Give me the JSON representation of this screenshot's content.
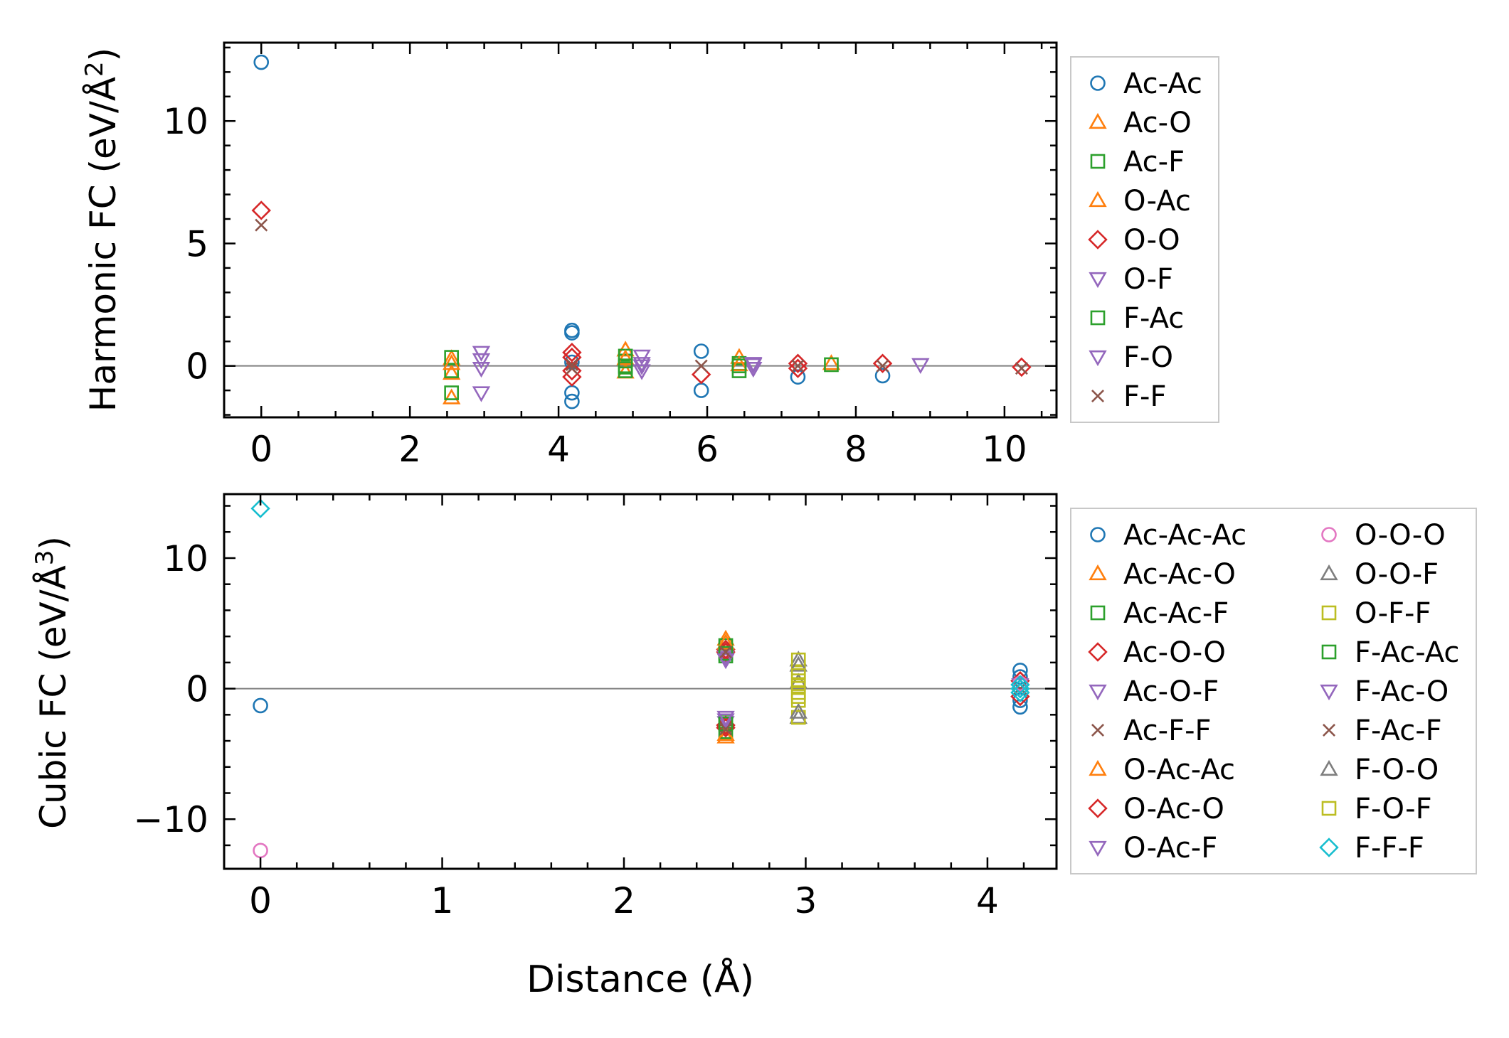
{
  "chart_data": [
    {
      "type": "scatter",
      "title": "",
      "ylabel": "Harmonic FC (eV/Å²)",
      "ylabel_main": "Harmonic FC (eV/Å",
      "ylabel_sup": "2",
      "ylabel_end": ")",
      "xlabel": "",
      "xlim": [
        -0.5,
        10.7
      ],
      "ylim": [
        -2.1,
        13.2
      ],
      "xticks": [
        "0",
        "2",
        "4",
        "6",
        "8",
        "10"
      ],
      "yticks": [
        "0",
        "5",
        "10"
      ],
      "zero_line": true,
      "legend_position": "outside-right",
      "series": [
        {
          "name": "Ac-Ac",
          "marker": "circle",
          "color": "#1f77b4",
          "points": [
            [
              0,
              12.4
            ],
            [
              4.18,
              1.45
            ],
            [
              4.18,
              1.35
            ],
            [
              4.18,
              0.15
            ],
            [
              4.18,
              -1.1
            ],
            [
              4.18,
              -1.45
            ],
            [
              5.92,
              0.6
            ],
            [
              5.92,
              -1.0
            ],
            [
              7.22,
              -0.45
            ],
            [
              8.36,
              -0.4
            ]
          ]
        },
        {
          "name": "Ac-O",
          "marker": "triangle-up",
          "color": "#ff7f0e",
          "points": [
            [
              2.56,
              0.3
            ],
            [
              2.56,
              -0.3
            ],
            [
              2.56,
              -1.3
            ],
            [
              4.9,
              0.65
            ],
            [
              4.9,
              -0.25
            ],
            [
              6.43,
              0.35
            ],
            [
              7.67,
              0.1
            ]
          ]
        },
        {
          "name": "Ac-F",
          "marker": "square",
          "color": "#2ca02c",
          "points": [
            [
              2.56,
              0.35
            ],
            [
              2.56,
              -0.2
            ],
            [
              2.56,
              -1.1
            ],
            [
              4.9,
              0.4
            ],
            [
              4.9,
              0.2
            ],
            [
              4.9,
              -0.05
            ],
            [
              4.9,
              -0.2
            ],
            [
              6.43,
              0.1
            ],
            [
              6.43,
              -0.2
            ],
            [
              7.67,
              0.05
            ]
          ]
        },
        {
          "name": "O-Ac",
          "marker": "triangle-up",
          "color": "#ff7f0e",
          "points": [
            [
              2.56,
              0.1
            ],
            [
              4.9,
              0.3
            ],
            [
              6.43,
              0.05
            ]
          ]
        },
        {
          "name": "O-O",
          "marker": "diamond",
          "color": "#d62728",
          "points": [
            [
              0,
              6.35
            ],
            [
              4.18,
              0.55
            ],
            [
              4.18,
              0.35
            ],
            [
              4.18,
              -0.2
            ],
            [
              4.18,
              -0.45
            ],
            [
              5.92,
              -0.35
            ],
            [
              7.22,
              0.1
            ],
            [
              7.22,
              -0.1
            ],
            [
              8.36,
              0.1
            ],
            [
              10.23,
              -0.05
            ]
          ]
        },
        {
          "name": "O-F",
          "marker": "triangle-down",
          "color": "#9467bd",
          "points": [
            [
              2.96,
              0.55
            ],
            [
              2.96,
              0.25
            ],
            [
              2.96,
              -0.1
            ],
            [
              2.96,
              -1.1
            ],
            [
              5.12,
              0.4
            ],
            [
              5.12,
              0.1
            ],
            [
              5.12,
              -0.2
            ],
            [
              6.62,
              0.1
            ],
            [
              6.62,
              -0.1
            ],
            [
              8.87,
              0.05
            ]
          ]
        },
        {
          "name": "F-Ac",
          "marker": "square",
          "color": "#2ca02c",
          "points": [
            [
              4.9,
              0.0
            ],
            [
              6.43,
              0.0
            ]
          ]
        },
        {
          "name": "F-O",
          "marker": "triangle-down",
          "color": "#9467bd",
          "points": [
            [
              5.12,
              0.0
            ],
            [
              6.62,
              0.05
            ]
          ]
        },
        {
          "name": "F-F",
          "marker": "x",
          "color": "#8c564b",
          "points": [
            [
              0,
              5.75
            ],
            [
              4.18,
              0.05
            ],
            [
              4.18,
              -0.1
            ],
            [
              5.92,
              0.0
            ],
            [
              7.22,
              0.0
            ],
            [
              8.36,
              0.0
            ],
            [
              10.23,
              -0.1
            ]
          ]
        }
      ]
    },
    {
      "type": "scatter",
      "title": "",
      "ylabel": "Cubic FC (eV/Å³)",
      "ylabel_main": "Cubic FC (eV/Å",
      "ylabel_sup": "3",
      "ylabel_end": ")",
      "xlabel": "Distance (Å)",
      "xlim": [
        -0.2,
        4.38
      ],
      "ylim": [
        -13.8,
        14.9
      ],
      "xticks": [
        "0",
        "1",
        "2",
        "3",
        "4"
      ],
      "yticks": [
        "−10",
        "0",
        "10"
      ],
      "zero_line": true,
      "legend_position": "outside-right",
      "series": [
        {
          "name": "Ac-Ac-Ac",
          "marker": "circle",
          "color": "#1f77b4",
          "points": [
            [
              0,
              -1.3
            ],
            [
              4.18,
              1.4
            ],
            [
              4.18,
              0.9
            ],
            [
              4.18,
              -0.9
            ],
            [
              4.18,
              -1.4
            ]
          ]
        },
        {
          "name": "Ac-Ac-O",
          "marker": "triangle-up",
          "color": "#ff7f0e",
          "points": [
            [
              2.56,
              3.8
            ],
            [
              2.56,
              -3.7
            ]
          ]
        },
        {
          "name": "Ac-Ac-F",
          "marker": "square",
          "color": "#2ca02c",
          "points": [
            [
              2.56,
              3.3
            ],
            [
              2.56,
              2.5
            ],
            [
              2.56,
              -2.5
            ],
            [
              2.56,
              -3.3
            ]
          ]
        },
        {
          "name": "Ac-O-O",
          "marker": "diamond",
          "color": "#d62728",
          "points": [
            [
              2.56,
              3.0
            ],
            [
              2.56,
              -3.0
            ],
            [
              4.18,
              0.6
            ],
            [
              4.18,
              -0.6
            ]
          ]
        },
        {
          "name": "Ac-O-F",
          "marker": "triangle-down",
          "color": "#9467bd",
          "points": [
            [
              2.56,
              2.6
            ],
            [
              2.56,
              -2.6
            ],
            [
              4.18,
              0.3
            ]
          ]
        },
        {
          "name": "Ac-F-F",
          "marker": "x",
          "color": "#8c564b",
          "points": [
            [
              2.56,
              2.9
            ],
            [
              2.56,
              -2.9
            ],
            [
              4.18,
              0.0
            ]
          ]
        },
        {
          "name": "O-Ac-Ac",
          "marker": "triangle-up",
          "color": "#ff7f0e",
          "points": [
            [
              2.56,
              3.5
            ],
            [
              2.56,
              -3.5
            ]
          ]
        },
        {
          "name": "O-Ac-O",
          "marker": "diamond",
          "color": "#d62728",
          "points": [
            [
              2.56,
              2.8
            ],
            [
              2.56,
              -2.8
            ]
          ]
        },
        {
          "name": "O-Ac-F",
          "marker": "triangle-down",
          "color": "#9467bd",
          "points": [
            [
              2.56,
              2.4
            ],
            [
              2.56,
              -2.4
            ]
          ]
        },
        {
          "name": "O-O-O",
          "marker": "circle",
          "color": "#e377c2",
          "points": [
            [
              0,
              -12.4
            ],
            [
              4.18,
              0.4
            ]
          ]
        },
        {
          "name": "O-O-F",
          "marker": "triangle-up",
          "color": "#7f7f7f",
          "points": [
            [
              2.96,
              2.2
            ],
            [
              2.96,
              -2.2
            ],
            [
              2.96,
              0.5
            ]
          ]
        },
        {
          "name": "O-F-F",
          "marker": "square",
          "color": "#bcbd22",
          "points": [
            [
              2.96,
              2.2
            ],
            [
              2.96,
              1.3
            ],
            [
              2.96,
              0.6
            ],
            [
              2.96,
              0.2
            ],
            [
              2.96,
              -0.3
            ],
            [
              2.96,
              -0.9
            ],
            [
              2.96,
              -2.2
            ]
          ]
        },
        {
          "name": "F-Ac-Ac",
          "marker": "square",
          "color": "#2ca02c",
          "points": [
            [
              2.56,
              2.7
            ],
            [
              2.56,
              -2.7
            ]
          ]
        },
        {
          "name": "F-Ac-O",
          "marker": "triangle-down",
          "color": "#9467bd",
          "points": [
            [
              2.56,
              2.2
            ],
            [
              2.56,
              -2.2
            ]
          ]
        },
        {
          "name": "F-Ac-F",
          "marker": "x",
          "color": "#8c564b",
          "points": [
            [
              2.56,
              2.8
            ],
            [
              2.56,
              -3.1
            ]
          ]
        },
        {
          "name": "F-O-O",
          "marker": "triangle-up",
          "color": "#7f7f7f",
          "points": [
            [
              2.96,
              1.8
            ],
            [
              2.96,
              -1.8
            ]
          ]
        },
        {
          "name": "F-O-F",
          "marker": "square",
          "color": "#bcbd22",
          "points": [
            [
              2.96,
              1.0
            ],
            [
              2.96,
              -0.6
            ]
          ]
        },
        {
          "name": "F-F-F",
          "marker": "diamond",
          "color": "#17becf",
          "points": [
            [
              0,
              13.8
            ],
            [
              4.18,
              0.3
            ],
            [
              4.18,
              0.0
            ],
            [
              4.18,
              -0.3
            ]
          ]
        }
      ]
    }
  ]
}
